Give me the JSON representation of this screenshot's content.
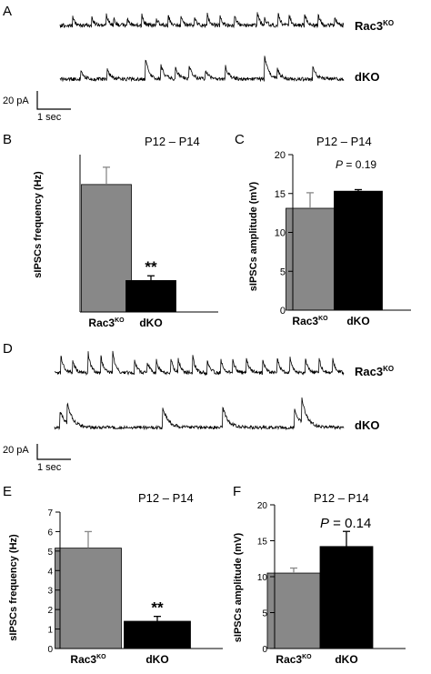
{
  "panels": {
    "A": {
      "letter": "A",
      "traces": [
        {
          "name_main": "Rac3",
          "name_sup": "KO"
        },
        {
          "name_main": "dKO",
          "name_sup": ""
        }
      ],
      "scale_y": "20 pA",
      "scale_x": "1 sec"
    },
    "D": {
      "letter": "D",
      "traces": [
        {
          "name_main": "Rac3",
          "name_sup": "KO"
        },
        {
          "name_main": "dKO",
          "name_sup": ""
        }
      ],
      "scale_y": "20 pA",
      "scale_x": "1 sec"
    }
  },
  "colors": {
    "rac3": "#888888",
    "dko": "#000000"
  },
  "chart_data": [
    {
      "panel": "B",
      "type": "bar",
      "title": "P12 – P14",
      "ylabel": "sIPSCs frequency (Hz)",
      "categories": [
        {
          "main": "Rac3",
          "sup": "KO"
        },
        {
          "main": "dKO",
          "sup": ""
        }
      ],
      "values": [
        8.1,
        2.0
      ],
      "errors": [
        1.1,
        0.3
      ],
      "ylim": [
        0,
        10
      ],
      "yticks": [],
      "annotation": "",
      "significance": [
        "",
        "**"
      ]
    },
    {
      "panel": "C",
      "type": "bar",
      "title": "P12 – P14",
      "ylabel": "sIPSCs amplitude (mV)",
      "categories": [
        {
          "main": "Rac3",
          "sup": "KO"
        },
        {
          "main": "dKO",
          "sup": ""
        }
      ],
      "values": [
        13.1,
        15.3
      ],
      "errors": [
        2.0,
        0.2
      ],
      "ylim": [
        0,
        20
      ],
      "yticks": [
        0,
        5,
        10,
        15,
        20
      ],
      "annotation": {
        "p": "P",
        "rest": " = 0.19"
      },
      "significance": [
        "",
        ""
      ]
    },
    {
      "panel": "E",
      "type": "bar",
      "title": "P12 – P14",
      "ylabel": "sIPSCs frequency (Hz)",
      "categories": [
        {
          "main": "Rac3",
          "sup": "KO"
        },
        {
          "main": "dKO",
          "sup": ""
        }
      ],
      "values": [
        5.15,
        1.4
      ],
      "errors": [
        0.85,
        0.25
      ],
      "ylim": [
        0,
        7
      ],
      "yticks": [
        0,
        1,
        2,
        3,
        4,
        5,
        6,
        7
      ],
      "annotation": "",
      "significance": [
        "",
        "**"
      ]
    },
    {
      "panel": "F",
      "type": "bar",
      "title": "P12 – P14",
      "ylabel": "sIPSCs amplitude (mV)",
      "categories": [
        {
          "main": "Rac3",
          "sup": "KO"
        },
        {
          "main": "dKO",
          "sup": ""
        }
      ],
      "values": [
        10.5,
        14.2
      ],
      "errors": [
        0.7,
        2.1
      ],
      "ylim": [
        0,
        20
      ],
      "yticks": [
        0,
        5,
        10,
        15,
        20
      ],
      "annotation": {
        "p": "P",
        "rest": " = 0.14"
      },
      "significance": [
        "",
        ""
      ]
    }
  ]
}
